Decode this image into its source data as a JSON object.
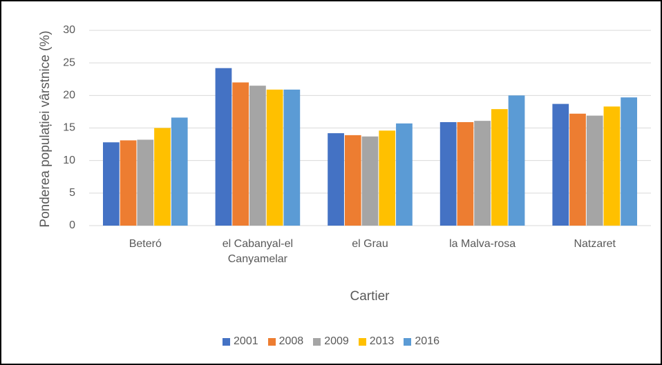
{
  "chart_data": {
    "type": "bar",
    "y_label": "Ponderea populației vârstnice (%)",
    "x_label": "Cartier",
    "categories": [
      "Beteró",
      "el Cabanyal-el Canyamelar",
      "el Grau",
      "la Malva-rosa",
      "Natzaret"
    ],
    "series": [
      {
        "name": "2001",
        "color": "#4472c4",
        "values": [
          12.8,
          24.2,
          14.2,
          15.9,
          18.7
        ]
      },
      {
        "name": "2008",
        "color": "#ed7d31",
        "values": [
          13.1,
          22.0,
          13.9,
          15.9,
          17.2
        ]
      },
      {
        "name": "2009",
        "color": "#a5a5a5",
        "values": [
          13.2,
          21.5,
          13.7,
          16.1,
          16.9
        ]
      },
      {
        "name": "2013",
        "color": "#ffc000",
        "values": [
          15.0,
          20.9,
          14.6,
          17.9,
          18.3
        ]
      },
      {
        "name": "2016",
        "color": "#5b9bd5",
        "values": [
          16.6,
          20.9,
          15.7,
          20.0,
          19.7
        ]
      }
    ],
    "ylim": [
      0,
      30
    ],
    "yticks": [
      0,
      5,
      10,
      15,
      20,
      25,
      30
    ],
    "grid": true,
    "legend": "bottom"
  }
}
